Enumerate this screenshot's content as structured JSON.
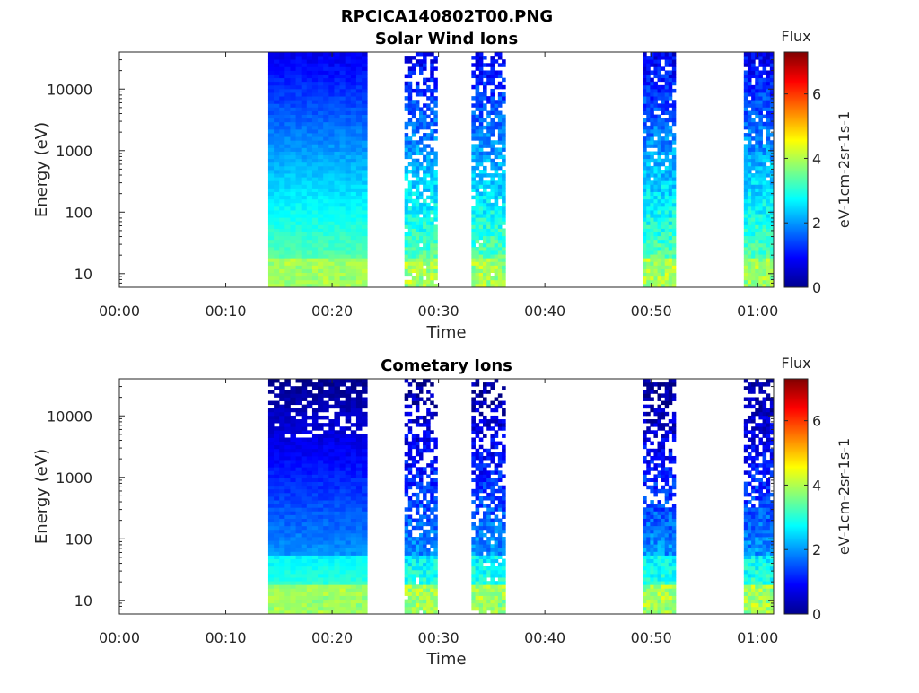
{
  "figure": {
    "title": "RPCICA140802T00.PNG"
  },
  "chart_data": [
    {
      "type": "heatmap",
      "title": "Solar Wind Ions",
      "xlabel": "Time",
      "ylabel": "Energy (eV)",
      "x_ticks": [
        "00:00",
        "00:10",
        "00:20",
        "00:30",
        "00:40",
        "00:50",
        "01:00"
      ],
      "y_ticks": [
        "10",
        "100",
        "1000",
        "10000"
      ],
      "y_scale": "log",
      "ylim": [
        6,
        40000
      ],
      "xlim_minutes": [
        0,
        61.5
      ],
      "colorbar": {
        "title": "Flux",
        "label": "eV-1cm-2sr-1s-1",
        "ticks": [
          "0",
          "2",
          "4",
          "6"
        ],
        "range": [
          0,
          7.3
        ]
      },
      "segments": [
        {
          "start": 14.0,
          "end": 23.3,
          "style": "dense"
        },
        {
          "start": 26.8,
          "end": 29.9,
          "style": "sparse"
        },
        {
          "start": 33.1,
          "end": 36.3,
          "style": "sparse"
        },
        {
          "start": 49.2,
          "end": 52.3,
          "style": "medium"
        },
        {
          "start": 58.7,
          "end": 61.5,
          "style": "medium"
        }
      ]
    },
    {
      "type": "heatmap",
      "title": "Cometary Ions",
      "xlabel": "Time",
      "ylabel": "Energy (eV)",
      "x_ticks": [
        "00:00",
        "00:10",
        "00:20",
        "00:30",
        "00:40",
        "00:50",
        "01:00"
      ],
      "y_ticks": [
        "10",
        "100",
        "1000",
        "10000"
      ],
      "y_scale": "log",
      "ylim": [
        6,
        40000
      ],
      "xlim_minutes": [
        0,
        61.5
      ],
      "colorbar": {
        "title": "Flux",
        "label": "eV-1cm-2sr-1s-1",
        "ticks": [
          "0",
          "2",
          "4",
          "6"
        ],
        "range": [
          0,
          7.3
        ]
      },
      "segments": [
        {
          "start": 14.0,
          "end": 23.3,
          "style": "dense-low"
        },
        {
          "start": 26.8,
          "end": 29.9,
          "style": "sparse-low"
        },
        {
          "start": 33.1,
          "end": 36.3,
          "style": "sparse-low"
        },
        {
          "start": 49.2,
          "end": 52.3,
          "style": "medium-low"
        },
        {
          "start": 58.7,
          "end": 61.5,
          "style": "medium-low"
        }
      ]
    }
  ]
}
